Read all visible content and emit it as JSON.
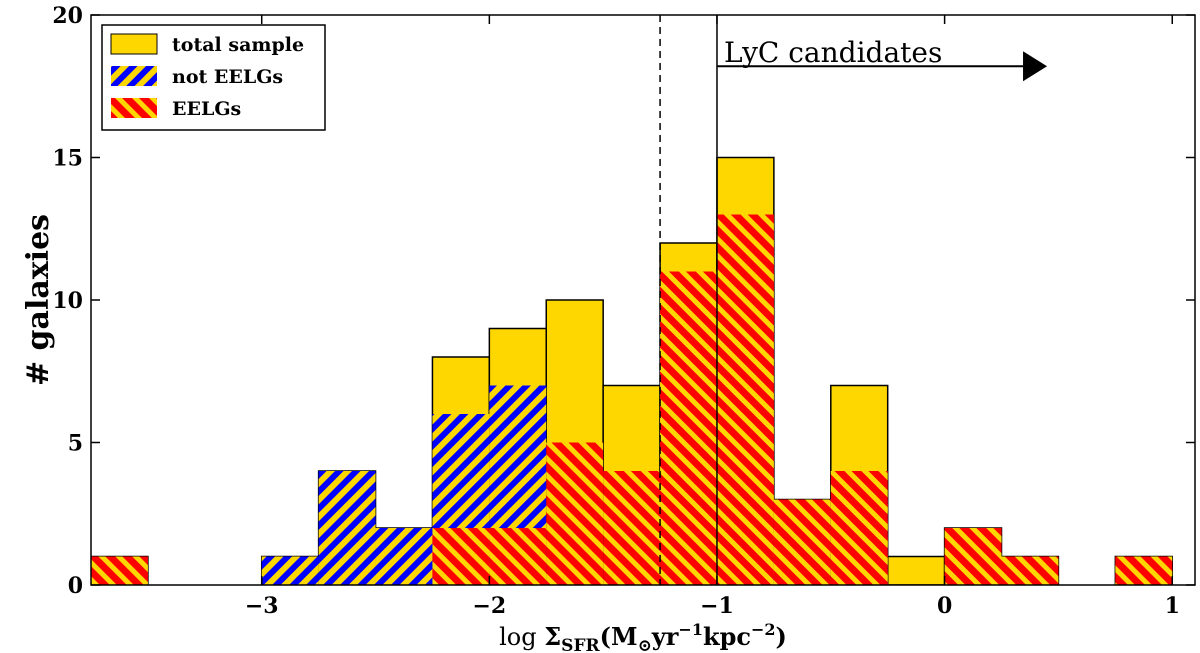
{
  "chart_data": {
    "type": "bar",
    "title": "",
    "xlabel": "log Σ_SFR(M⊙yr⁻¹kpc⁻²)",
    "ylabel": "# galaxies",
    "xlim": [
      -3.75,
      1.1
    ],
    "ylim": [
      0,
      20
    ],
    "bin_width": 0.25,
    "x_ticks": [
      -3,
      -2,
      -1,
      0,
      1
    ],
    "x_tick_labels": [
      "−3",
      "−2",
      "−1",
      "0",
      "1"
    ],
    "y_ticks": [
      0,
      5,
      10,
      15,
      20
    ],
    "y_tick_labels": [
      "0",
      "5",
      "10",
      "15",
      "20"
    ],
    "bin_left_edges": [
      -3.75,
      -3.5,
      -3.25,
      -3.0,
      -2.75,
      -2.5,
      -2.25,
      -2.0,
      -1.75,
      -1.5,
      -1.25,
      -1.0,
      -0.75,
      -0.5,
      -0.25,
      0.0,
      0.25,
      0.5,
      0.75,
      1.0
    ],
    "series": [
      {
        "name": "total sample",
        "color": "#FFD700",
        "style": "outlined",
        "values": [
          1,
          0,
          0,
          1,
          4,
          2,
          8,
          9,
          10,
          7,
          12,
          15,
          3,
          7,
          1,
          2,
          1,
          0,
          1,
          0
        ]
      },
      {
        "name": "not EELGs",
        "color": "#0000FF",
        "style": "hatched",
        "values": [
          0,
          0,
          0,
          1,
          4,
          2,
          6,
          7,
          0,
          0,
          0,
          2,
          0,
          3,
          0,
          0,
          0,
          0,
          0,
          0
        ]
      },
      {
        "name": "EELGs",
        "color": "#FF0000",
        "style": "hatched",
        "values": [
          1,
          0,
          0,
          0,
          0,
          0,
          2,
          2,
          5,
          4,
          11,
          13,
          3,
          4,
          0,
          2,
          1,
          0,
          1,
          0
        ]
      }
    ],
    "legend_position": "top-left",
    "vlines": [
      {
        "x": -1.25,
        "style": "dashed"
      },
      {
        "x": -1.0,
        "style": "solid"
      }
    ],
    "annotation": {
      "text": "LyC candidates",
      "arrow": "right",
      "from_x": -1.0,
      "to_x": 0.45,
      "y": 18.2
    }
  }
}
